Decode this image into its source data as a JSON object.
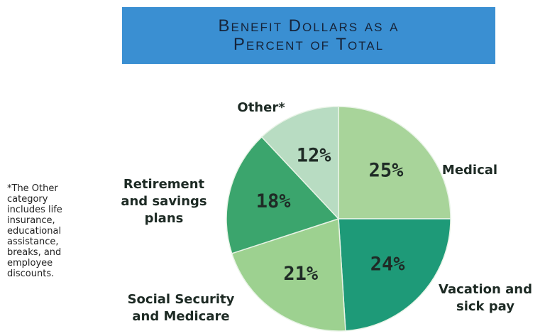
{
  "chart_data": {
    "type": "pie",
    "title": "Benefit Dollars as a Percent of Total",
    "categories": [
      "Medical",
      "Vacation and sick pay",
      "Social Security and Medicare",
      "Retirement and savings plans",
      "Other*"
    ],
    "values": [
      25,
      24,
      21,
      18,
      12
    ],
    "value_labels": [
      "25%",
      "24%",
      "21%",
      "18%",
      "12%"
    ],
    "colors": [
      "#a8d49a",
      "#1e9a78",
      "#9dd190",
      "#3ba56d",
      "#b8dcc2"
    ],
    "footnote": "*The Other category includes life insurance, educational assistance, breaks, and employee discounts."
  }
}
